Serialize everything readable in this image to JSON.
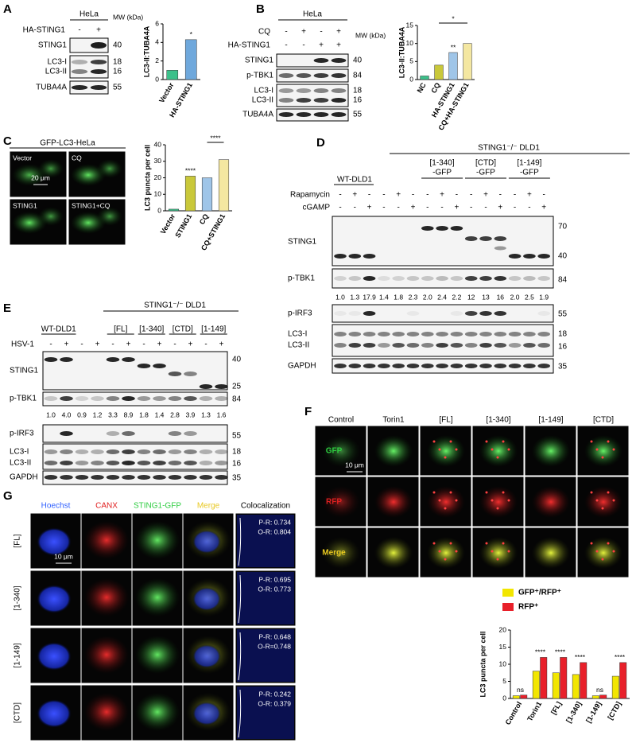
{
  "panel_labels": [
    "A",
    "B",
    "C",
    "D",
    "E",
    "F",
    "G"
  ],
  "blot_A": {
    "cell_line": "HeLa",
    "treatment": "HA-STING1",
    "signs": [
      "-",
      "+"
    ],
    "mw_header": "MW (kDa)",
    "rows": [
      "STING1",
      "LC3-I",
      "LC3-II",
      "TUBA4A"
    ],
    "mw": [
      40,
      18,
      16,
      55
    ]
  },
  "blot_B": {
    "cell_line": "HeLa",
    "treatments": [
      {
        "name": "CQ",
        "signs": [
          "-",
          "+",
          "-",
          "+"
        ]
      },
      {
        "name": "HA-STING1",
        "signs": [
          "-",
          "-",
          "+",
          "+"
        ]
      }
    ],
    "mw_header": "MW (kDa)",
    "rows": [
      "STING1",
      "p-TBK1",
      "LC3-I",
      "LC3-II",
      "TUBA4A"
    ],
    "mw": [
      40,
      84,
      18,
      16,
      55
    ]
  },
  "micro_C": {
    "title": "GFP-LC3-HeLa",
    "labels": [
      "Vector",
      "CQ",
      "STING1",
      "STING1+CQ"
    ],
    "scale": "20 μm"
  },
  "blot_D": {
    "header": "STING1⁻/⁻ DLD1",
    "wt": "WT-DLD1",
    "groups": [
      {
        "name": "[1-340]",
        "tag": "-GFP"
      },
      {
        "name": "[CTD]",
        "tag": "-GFP"
      },
      {
        "name": "[1-149]",
        "tag": "-GFP"
      }
    ],
    "treatments": [
      {
        "name": "Rapamycin",
        "signs": [
          "-",
          "+",
          "-",
          "-",
          "+",
          "-",
          "-",
          "+",
          "-",
          "-",
          "+",
          "-",
          "-",
          "+",
          "-"
        ]
      },
      {
        "name": "cGAMP",
        "signs": [
          "-",
          "-",
          "+",
          "-",
          "-",
          "+",
          "-",
          "-",
          "+",
          "-",
          "-",
          "+",
          "-",
          "-",
          "+"
        ]
      }
    ],
    "rows": [
      "STING1",
      "p-TBK1",
      "p-IRF3",
      "LC3-I",
      "LC3-II",
      "GAPDH"
    ],
    "mw": [
      70,
      40,
      84,
      55,
      18,
      16,
      35
    ],
    "quant": [
      "1.0",
      "1.3",
      "17.9",
      "1.4",
      "1.8",
      "2.3",
      "2.0",
      "2.4",
      "2.2",
      "12",
      "13",
      "16",
      "2.0",
      "2.5",
      "1.9"
    ]
  },
  "blot_E": {
    "header": "STING1⁻/⁻ DLD1",
    "wt": "WT-DLD1",
    "groups": [
      "[FL]",
      "[1-340]",
      "[CTD]",
      "[1-149]"
    ],
    "treatment": {
      "name": "HSV-1",
      "signs": [
        "-",
        "+",
        "-",
        "+",
        "-",
        "+",
        "-",
        "+",
        "-",
        "+",
        "-",
        "+"
      ]
    },
    "rows": [
      "STING1",
      "p-TBK1",
      "p-IRF3",
      "LC3-I",
      "LC3-II",
      "GAPDH"
    ],
    "mw": [
      40,
      25,
      84,
      55,
      18,
      16,
      35
    ],
    "quant": [
      "1.0",
      "4.0",
      "0.9",
      "1.2",
      "3.3",
      "8.9",
      "1.8",
      "1.4",
      "2.8",
      "3.9",
      "1.3",
      "1.6"
    ]
  },
  "micro_F": {
    "columns": [
      "Control",
      "Torin1",
      "[FL]",
      "[1-340]",
      "[1-149]",
      "[CTD]"
    ],
    "rows": [
      "GFP",
      "RFP",
      "Merge"
    ],
    "scale": "10 μm"
  },
  "micro_G": {
    "columns": [
      "Hoechst",
      "CANX",
      "STING1-GFP",
      "Merge",
      "Colocalization"
    ],
    "rows": [
      "[FL]",
      "[1-340]",
      "[1-149]",
      "[CTD]"
    ],
    "coloc": [
      [
        "P-R: 0.734",
        "O-R: 0.804"
      ],
      [
        "P-R: 0.695",
        "O-R: 0.773"
      ],
      [
        "P-R: 0.648",
        "O-R=0.748"
      ],
      [
        "P-R: 0.242",
        "O-R: 0.379"
      ]
    ],
    "scale": "10 μm"
  },
  "chart_data": [
    {
      "type": "bar",
      "y_label": "LC3-II:TUBA4A",
      "categories": [
        "Vector",
        "HA-STING1"
      ],
      "values": [
        1,
        4.3
      ],
      "colors": [
        "#3cc08a",
        "#6fa8dc"
      ],
      "ylim": [
        0,
        6
      ],
      "yticks": [
        0,
        2,
        4,
        6
      ],
      "annotations": [
        null,
        "*"
      ]
    },
    {
      "type": "bar",
      "y_label": "LC3-II:TUBA4A",
      "categories": [
        "NC",
        "CQ",
        "HA-STING1",
        "CQ+HA-STING1"
      ],
      "values": [
        1,
        4,
        7.5,
        10
      ],
      "colors": [
        "#3cc08a",
        "#c9c83a",
        "#9fc5e8",
        "#f4e7a1"
      ],
      "ylim": [
        0,
        15
      ],
      "yticks": [
        0,
        5,
        10,
        15
      ],
      "annotations": [
        null,
        null,
        "**",
        null
      ],
      "bracket": "*"
    },
    {
      "type": "bar",
      "y_label": "LC3 puncta per cell",
      "categories": [
        "Vector",
        "STING1",
        "CQ",
        "CQ+STING1"
      ],
      "values": [
        1,
        21,
        20,
        31
      ],
      "colors": [
        "#3cc08a",
        "#c9c83a",
        "#9fc5e8",
        "#f4e7a1"
      ],
      "ylim": [
        0,
        40
      ],
      "yticks": [
        0,
        10,
        20,
        30,
        40
      ],
      "annotations": [
        null,
        "****",
        null,
        null
      ],
      "bracket": "****"
    },
    {
      "type": "bar",
      "y_label": "LC3 puncta per cell",
      "categories": [
        "Control",
        "Torin1",
        "[FL]",
        "[1-340]",
        "[1-149]",
        "[CTD]"
      ],
      "series": [
        {
          "name": "GFP⁺/RFP⁺",
          "color": "#f2e600",
          "values": [
            0.8,
            8,
            7.5,
            7,
            0.8,
            6.5
          ]
        },
        {
          "name": "RFP⁺",
          "color": "#e8202a",
          "values": [
            1,
            12,
            12,
            10.5,
            1,
            10.5
          ]
        }
      ],
      "ylim": [
        0,
        20
      ],
      "yticks": [
        0,
        5,
        10,
        15,
        20
      ],
      "annotations": [
        "ns",
        "****",
        "****",
        "****",
        "ns",
        "****"
      ]
    }
  ]
}
